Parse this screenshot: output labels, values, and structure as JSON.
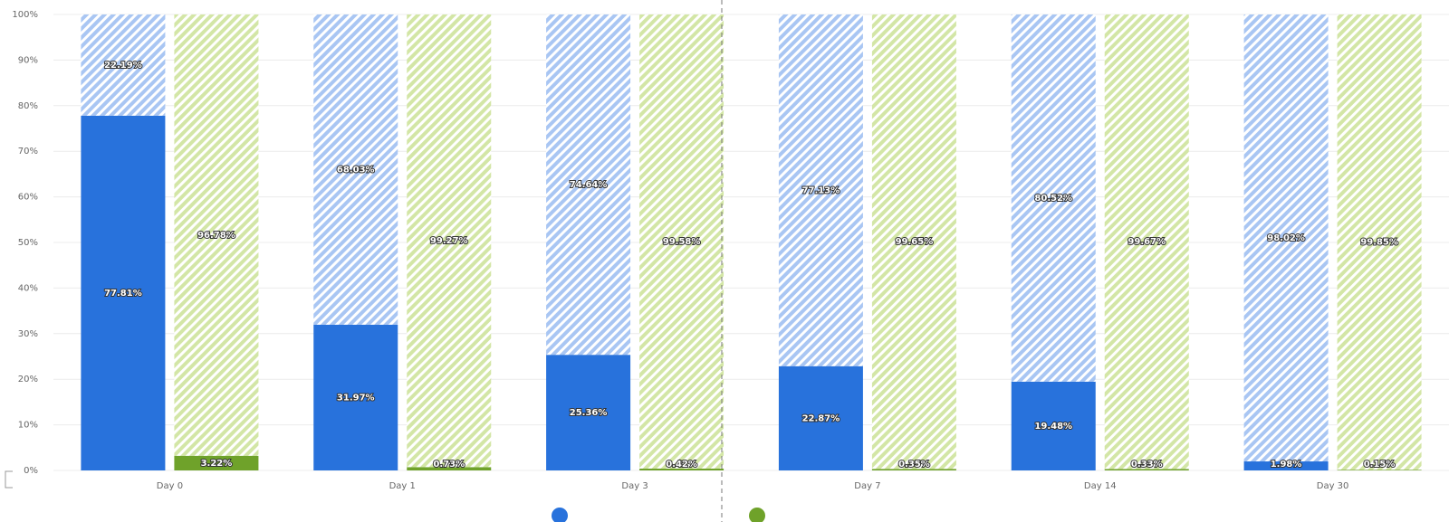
{
  "chart_data": {
    "type": "stacked_bar",
    "categories": [
      "Day 0",
      "Day 1",
      "Day 3",
      "Day 7",
      "Day 14",
      "Day 30"
    ],
    "ylim": [
      0,
      100
    ],
    "yticks": [
      {
        "value": 0,
        "label": "0%"
      },
      {
        "value": 10,
        "label": "10%"
      },
      {
        "value": 20,
        "label": "20%"
      },
      {
        "value": 30,
        "label": "30%"
      },
      {
        "value": 40,
        "label": "40%"
      },
      {
        "value": 50,
        "label": "50%"
      },
      {
        "value": 60,
        "label": "60%"
      },
      {
        "value": 70,
        "label": "70%"
      },
      {
        "value": 80,
        "label": "80%"
      },
      {
        "value": 90,
        "label": "90%"
      },
      {
        "value": 100,
        "label": "100%"
      }
    ],
    "grid": true,
    "series": [
      {
        "stack": 0,
        "color": "#2872dc",
        "hatched": false,
        "values": [
          77.81,
          31.97,
          25.36,
          22.87,
          19.48,
          1.98
        ],
        "value_labels": [
          "77.81%",
          "31.97%",
          "25.36%",
          "22.87%",
          "19.48%",
          "1.98%"
        ]
      },
      {
        "stack": 0,
        "color": "#a9c6f3",
        "hatched": true,
        "values": [
          22.19,
          68.03,
          74.64,
          77.13,
          80.52,
          98.02
        ],
        "value_labels": [
          "22.19%",
          "68.03%",
          "74.64%",
          "77.13%",
          "80.52%",
          "98.02%"
        ]
      },
      {
        "stack": 1,
        "color": "#6fa22a",
        "hatched": false,
        "values": [
          3.22,
          0.73,
          0.42,
          0.35,
          0.33,
          0.15
        ],
        "value_labels": [
          "3.22%",
          "0.73%",
          "0.42%",
          "0.35%",
          "0.33%",
          "0.15%"
        ]
      },
      {
        "stack": 1,
        "color": "#d3e6a6",
        "hatched": true,
        "values": [
          96.78,
          99.27,
          99.58,
          99.65,
          99.67,
          99.85
        ],
        "value_labels": [
          "96.78%",
          "99.27%",
          "99.58%",
          "99.65%",
          "99.67%",
          "99.85%"
        ]
      }
    ]
  }
}
